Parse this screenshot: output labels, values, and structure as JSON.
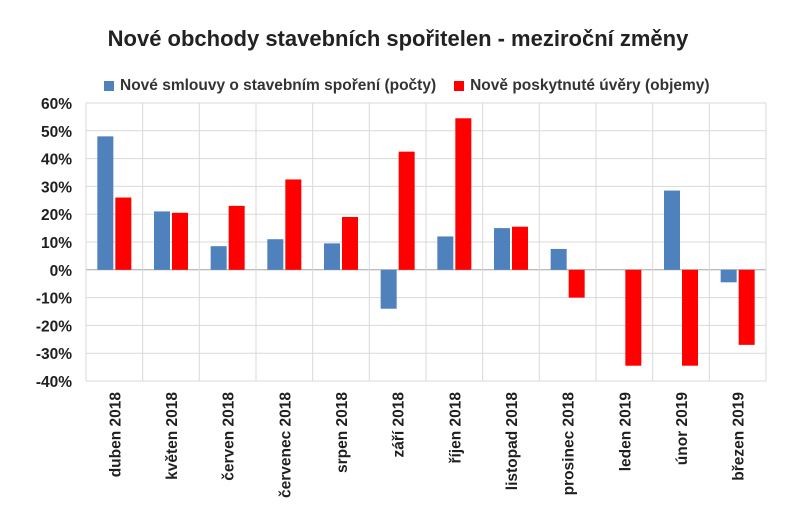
{
  "chart_data": {
    "type": "bar",
    "title": "Nové obchody stavebních spořitelen - meziroční změny",
    "categories": [
      "duben 2018",
      "květen 2018",
      "červen 2018",
      "červenec 2018",
      "srpen 2018",
      "září 2018",
      "říjen 2018",
      "listopad 2018",
      "prosinec 2018",
      "leden 2019",
      "únor 2019",
      "březen 2019"
    ],
    "series": [
      {
        "name": "Nové smlouvy o stavebním spoření (počty)",
        "color": "#4f81bd",
        "values": [
          48,
          21,
          8.5,
          11,
          9.5,
          -14,
          12,
          15,
          7.5,
          null,
          28.5,
          -4.5
        ]
      },
      {
        "name": "Nově poskytnuté úvěry (objemy)",
        "color": "#ff0000",
        "values": [
          26,
          20.5,
          23,
          32.5,
          19,
          42.5,
          54.5,
          15.5,
          -10,
          -34.5,
          -34.5,
          -27
        ]
      }
    ],
    "ylim": [
      -40,
      60
    ],
    "yticks": [
      60,
      50,
      40,
      30,
      20,
      10,
      0,
      -10,
      -20,
      -30,
      -40
    ],
    "ytick_labels": [
      "60%",
      "50%",
      "40%",
      "30%",
      "20%",
      "10%",
      "0%",
      "-10%",
      "-20%",
      "-30%",
      "-40%"
    ],
    "xlabel": "",
    "ylabel": "",
    "grid": true,
    "legend_position": "top"
  }
}
